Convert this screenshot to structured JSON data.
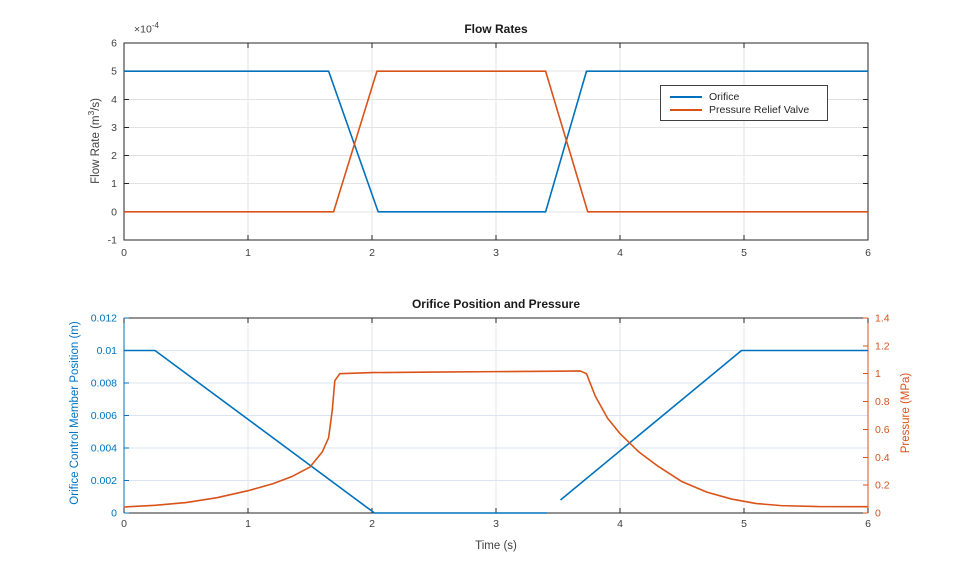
{
  "colors": {
    "blue": "#0072BD",
    "orange": "#D95319",
    "axis": "#262626",
    "tick_text": "#404040",
    "grid_top": "#e3e3e3",
    "grid_bottom_h": "#dbe5f1",
    "grid_bottom_v": "#e3e6ea",
    "background": "#ffffff",
    "legend_border": "#404040"
  },
  "chart_data": [
    {
      "type": "line",
      "title": "Flow Rates",
      "ylabel_parts": [
        "Flow Rate  (m",
        "3",
        "/s)"
      ],
      "y_exponent": {
        "base": "×10",
        "power": "-4"
      },
      "xlim": [
        0,
        6
      ],
      "ylim": [
        -1,
        6
      ],
      "xticks": [
        0,
        1,
        2,
        3,
        4,
        5,
        6
      ],
      "xtick_labels": [
        "0",
        "1",
        "2",
        "3",
        "4",
        "5",
        "6"
      ],
      "yticks": [
        -1,
        0,
        1,
        2,
        3,
        4,
        5,
        6
      ],
      "ytick_labels": [
        "-1",
        "0",
        "1",
        "2",
        "3",
        "4",
        "5",
        "6"
      ],
      "grid": true,
      "legend": {
        "location": "inside-right",
        "entries": [
          {
            "label": "Orifice",
            "color_key": "blue"
          },
          {
            "label": "Pressure Relief Valve",
            "color_key": "orange"
          }
        ]
      },
      "series": [
        {
          "name": "Orifice",
          "color_key": "blue",
          "segments": [
            [
              [
                0,
                5
              ],
              [
                1.65,
                5
              ],
              [
                2.05,
                0
              ],
              [
                3.4,
                0
              ],
              [
                3.73,
                5
              ],
              [
                6,
                5
              ]
            ]
          ]
        },
        {
          "name": "Pressure Relief Valve",
          "color_key": "orange",
          "segments": [
            [
              [
                0,
                0
              ],
              [
                1.69,
                0
              ],
              [
                2.04,
                5
              ],
              [
                3.4,
                5
              ],
              [
                3.74,
                0
              ],
              [
                6,
                0
              ]
            ]
          ]
        }
      ]
    },
    {
      "type": "line",
      "title": "Orifice Position and Pressure",
      "xlabel": "Time (s)",
      "ylabel_left": "Orifice Control Member Position (m)",
      "ylabel_right": "Pressure (MPa)",
      "xlim": [
        0,
        6
      ],
      "ylim_left": [
        0,
        0.012
      ],
      "ylim_right": [
        0,
        1.4
      ],
      "xticks": [
        0,
        1,
        2,
        3,
        4,
        5,
        6
      ],
      "xtick_labels": [
        "0",
        "1",
        "2",
        "3",
        "4",
        "5",
        "6"
      ],
      "yticks_left": [
        0,
        0.002,
        0.004,
        0.006,
        0.008,
        0.01,
        0.012
      ],
      "ytick_labels_left": [
        "0",
        "0.002",
        "0.004",
        "0.006",
        "0.008",
        "0.01",
        "0.012"
      ],
      "yticks_right": [
        0,
        0.2,
        0.4,
        0.6,
        0.8,
        1,
        1.2,
        1.4
      ],
      "ytick_labels_right": [
        "0",
        "0.2",
        "0.4",
        "0.6",
        "0.8",
        "1",
        "1.2",
        "1.4"
      ],
      "grid": true,
      "series": [
        {
          "name": "Orifice Control Member Position",
          "axis": "left",
          "color_key": "blue",
          "segments": [
            [
              [
                0,
                0.01
              ],
              [
                0.25,
                0.01
              ],
              [
                2.02,
                0
              ],
              [
                3.41,
                0
              ]
            ],
            [
              [
                3.52,
                0.0008
              ],
              [
                4.98,
                0.01
              ],
              [
                6,
                0.01
              ]
            ]
          ]
        },
        {
          "name": "Pressure",
          "axis": "right",
          "color_key": "orange",
          "segments": [
            [
              [
                0,
                0.043
              ],
              [
                0.25,
                0.055
              ],
              [
                0.5,
                0.075
              ],
              [
                0.75,
                0.11
              ],
              [
                1.0,
                0.16
              ],
              [
                1.2,
                0.21
              ],
              [
                1.35,
                0.26
              ],
              [
                1.5,
                0.33
              ],
              [
                1.6,
                0.44
              ],
              [
                1.65,
                0.54
              ],
              [
                1.68,
                0.74
              ],
              [
                1.7,
                0.95
              ],
              [
                1.74,
                1.0
              ],
              [
                2.0,
                1.008
              ],
              [
                2.5,
                1.012
              ],
              [
                3.0,
                1.015
              ],
              [
                3.5,
                1.018
              ],
              [
                3.68,
                1.02
              ],
              [
                3.73,
                1.0
              ],
              [
                3.8,
                0.84
              ],
              [
                3.9,
                0.68
              ],
              [
                4.0,
                0.57
              ],
              [
                4.15,
                0.44
              ],
              [
                4.3,
                0.34
              ],
              [
                4.5,
                0.225
              ],
              [
                4.7,
                0.15
              ],
              [
                4.9,
                0.1
              ],
              [
                5.1,
                0.068
              ],
              [
                5.3,
                0.053
              ],
              [
                5.6,
                0.046
              ],
              [
                6,
                0.045
              ]
            ]
          ]
        }
      ]
    }
  ]
}
